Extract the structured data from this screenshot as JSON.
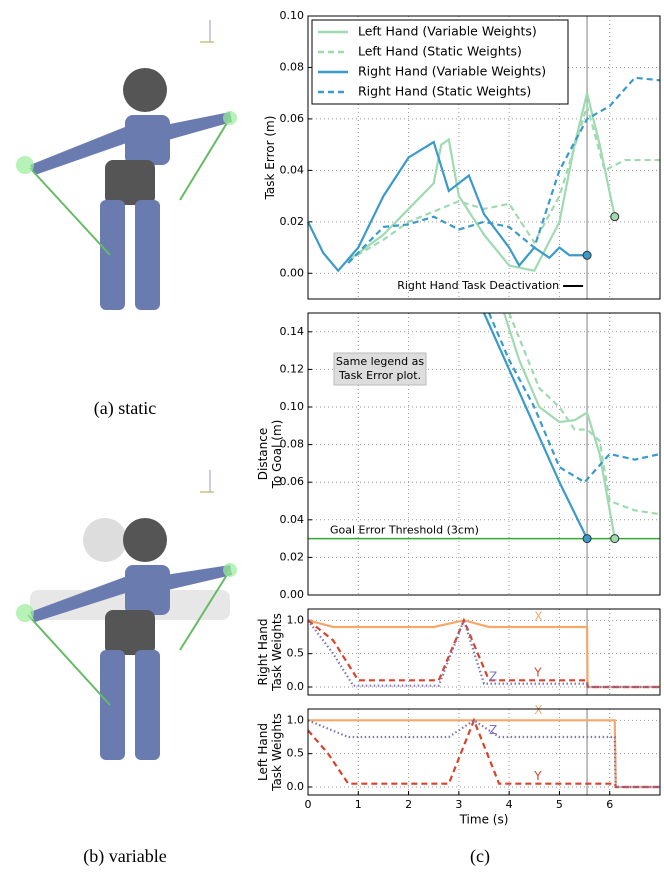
{
  "captions": [
    "(a) static",
    "(b) variable",
    "(c)"
  ],
  "chart_data": [
    {
      "type": "line",
      "ylabel": [
        "Task Error (m)"
      ],
      "xlim": [
        0,
        7
      ],
      "ylim": [
        -0.01,
        0.1
      ],
      "yticks": [
        {
          "value": 0,
          "label": "0.00"
        },
        {
          "value": 0.02,
          "label": "0.02"
        },
        {
          "value": 0.04,
          "label": "0.04"
        },
        {
          "value": 0.06,
          "label": "0.06"
        },
        {
          "value": 0.08,
          "label": "0.08"
        },
        {
          "value": 0.1,
          "label": "0.10"
        }
      ],
      "grid": true,
      "legend": "upper-left",
      "vline": 5.55,
      "annotation": [
        "Right Hand Task Deactivation"
      ],
      "series": [
        {
          "name": "Left Hand (Variable Weights)",
          "color": "#9fdab0",
          "dash": "solid",
          "end_marker": true,
          "x": [
            0.8,
            1.5,
            2,
            2.5,
            2.65,
            2.8,
            3,
            3.5,
            4,
            4.5,
            5,
            5.3,
            5.55,
            5.8,
            6.1
          ],
          "values": [
            0.005,
            0.015,
            0.025,
            0.035,
            0.05,
            0.052,
            0.03,
            0.015,
            0.003,
            0.001,
            0.02,
            0.05,
            0.07,
            0.05,
            0.022
          ]
        },
        {
          "name": "Left Hand (Static Weights)",
          "color": "#9fdab0",
          "dash": "dashed",
          "x": [
            0.8,
            1.5,
            2,
            2.5,
            3,
            3.5,
            4,
            4.5,
            5,
            5.55,
            5.9,
            6.3,
            7
          ],
          "values": [
            0.005,
            0.013,
            0.02,
            0.024,
            0.028,
            0.025,
            0.027,
            0.012,
            0.03,
            0.065,
            0.04,
            0.044,
            0.044
          ]
        },
        {
          "name": "Right Hand (Variable Weights)",
          "color": "#3a9ac9",
          "dash": "solid",
          "end_marker": true,
          "x": [
            0,
            0.3,
            0.6,
            1,
            1.5,
            2,
            2.5,
            2.8,
            3,
            3.2,
            3.5,
            4,
            4.2,
            4.5,
            4.8,
            5,
            5.2,
            5.55
          ],
          "values": [
            0.02,
            0.008,
            0.001,
            0.01,
            0.03,
            0.045,
            0.051,
            0.032,
            0.035,
            0.038,
            0.023,
            0.01,
            0.003,
            0.01,
            0.006,
            0.01,
            0.007,
            0.007
          ]
        },
        {
          "name": "Right Hand (Static Weights)",
          "color": "#3a9ac9",
          "dash": "dashed",
          "x": [
            0.8,
            1.5,
            2,
            2.5,
            3,
            3.5,
            4,
            4.5,
            5,
            5.55,
            6,
            6.5,
            7
          ],
          "values": [
            0.004,
            0.018,
            0.019,
            0.022,
            0.017,
            0.02,
            0.018,
            0.01,
            0.04,
            0.06,
            0.065,
            0.076,
            0.075
          ]
        }
      ]
    },
    {
      "type": "line",
      "ylabel": [
        "Distance",
        "To Goal (m)"
      ],
      "xlim": [
        0,
        7
      ],
      "ylim": [
        0,
        0.15
      ],
      "yticks": [
        {
          "value": 0,
          "label": "0.00"
        },
        {
          "value": 0.02,
          "label": "0.02"
        },
        {
          "value": 0.04,
          "label": "0.04"
        },
        {
          "value": 0.06,
          "label": "0.06"
        },
        {
          "value": 0.08,
          "label": "0.08"
        },
        {
          "value": 0.1,
          "label": "0.10"
        },
        {
          "value": 0.12,
          "label": "0.12"
        },
        {
          "value": 0.14,
          "label": "0.14"
        }
      ],
      "grid": true,
      "vline": 5.55,
      "hline": 0.03,
      "hline_label": "Goal Error Threshold (3cm)",
      "annotation": [
        "Same legend as",
        "Task Error plot."
      ],
      "series": [
        {
          "name": "Left Hand (Variable Weights)",
          "color": "#9fdab0",
          "dash": "solid",
          "end_marker": true,
          "x": [
            3.9,
            4.2,
            4.6,
            5,
            5.3,
            5.55,
            5.8,
            6.1
          ],
          "values": [
            0.15,
            0.125,
            0.1,
            0.092,
            0.093,
            0.097,
            0.075,
            0.03
          ]
        },
        {
          "name": "Left Hand (Static Weights)",
          "color": "#9fdab0",
          "dash": "dashed",
          "x": [
            4,
            4.3,
            4.6,
            5,
            5.3,
            5.55,
            5.8,
            6,
            6.5,
            7
          ],
          "values": [
            0.15,
            0.13,
            0.11,
            0.1,
            0.088,
            0.088,
            0.082,
            0.05,
            0.045,
            0.043
          ]
        },
        {
          "name": "Right Hand (Variable Weights)",
          "color": "#3a9ac9",
          "dash": "solid",
          "end_marker": true,
          "x": [
            3.5,
            4,
            4.5,
            5,
            5.55
          ],
          "values": [
            0.15,
            0.12,
            0.09,
            0.06,
            0.03
          ]
        },
        {
          "name": "Right Hand (Static Weights)",
          "color": "#3a9ac9",
          "dash": "dashed",
          "x": [
            3.6,
            4,
            4.5,
            5,
            5.5,
            6,
            6.5,
            7
          ],
          "values": [
            0.15,
            0.125,
            0.1,
            0.068,
            0.06,
            0.075,
            0.072,
            0.075
          ]
        }
      ]
    },
    {
      "type": "line",
      "ylabel": [
        "Right Hand",
        "Task Weights"
      ],
      "xlim": [
        0,
        7
      ],
      "ylim": [
        -0.12,
        1.17
      ],
      "yticks": [
        {
          "value": 0,
          "label": "0.0"
        },
        {
          "value": 0.5,
          "label": "0.5"
        },
        {
          "value": 1,
          "label": "1.0"
        }
      ],
      "grid": true,
      "vline": 5.55,
      "series": [
        {
          "name": "X",
          "color": "#f5a86a",
          "dash": "solid",
          "x": [
            0,
            0.5,
            2.5,
            3.1,
            3.6,
            5.55,
            5.56,
            7
          ],
          "values": [
            1,
            0.9,
            0.9,
            1,
            0.9,
            0.9,
            0,
            0
          ]
        },
        {
          "name": "Y",
          "color": "#d9432b",
          "dash": "dashed",
          "x": [
            0,
            0.5,
            1,
            2.6,
            3.1,
            3.6,
            5.55,
            5.56,
            7
          ],
          "values": [
            1,
            0.7,
            0.1,
            0.1,
            1,
            0.1,
            0.1,
            0,
            0
          ]
        },
        {
          "name": "Z",
          "color": "#7e74b8",
          "dash": "dotted",
          "x": [
            0,
            0.5,
            0.9,
            2.6,
            3.1,
            3.5,
            5.55,
            5.56,
            7
          ],
          "values": [
            1,
            0.5,
            0.02,
            0.02,
            1,
            0.05,
            0.05,
            0,
            0
          ]
        }
      ]
    },
    {
      "type": "line",
      "ylabel": [
        "Left Hand",
        "Task Weights"
      ],
      "xlabel": "Time (s)",
      "xlim": [
        0,
        7
      ],
      "ylim": [
        -0.12,
        1.17
      ],
      "xticks": [
        0,
        1,
        2,
        3,
        4,
        5,
        6
      ],
      "yticks": [
        {
          "value": 0,
          "label": "0.0"
        },
        {
          "value": 0.5,
          "label": "0.5"
        },
        {
          "value": 1,
          "label": "1.0"
        }
      ],
      "grid": true,
      "vline": 5.55,
      "series": [
        {
          "name": "X",
          "color": "#f5a86a",
          "dash": "solid",
          "x": [
            0,
            6.1,
            6.12,
            7
          ],
          "values": [
            1,
            1,
            0,
            0
          ]
        },
        {
          "name": "Y",
          "color": "#d9432b",
          "dash": "dashed",
          "x": [
            0,
            0.4,
            0.8,
            2.8,
            3.3,
            3.8,
            6.1,
            6.12,
            7
          ],
          "values": [
            0.85,
            0.5,
            0.05,
            0.05,
            1,
            0.05,
            0.05,
            0,
            0
          ]
        },
        {
          "name": "Z",
          "color": "#7e74b8",
          "dash": "dotted",
          "x": [
            0,
            0.8,
            2.8,
            3.3,
            3.8,
            6.1,
            6.12,
            7
          ],
          "values": [
            1,
            0.75,
            0.75,
            1,
            0.75,
            0.75,
            0,
            0
          ]
        }
      ]
    }
  ]
}
